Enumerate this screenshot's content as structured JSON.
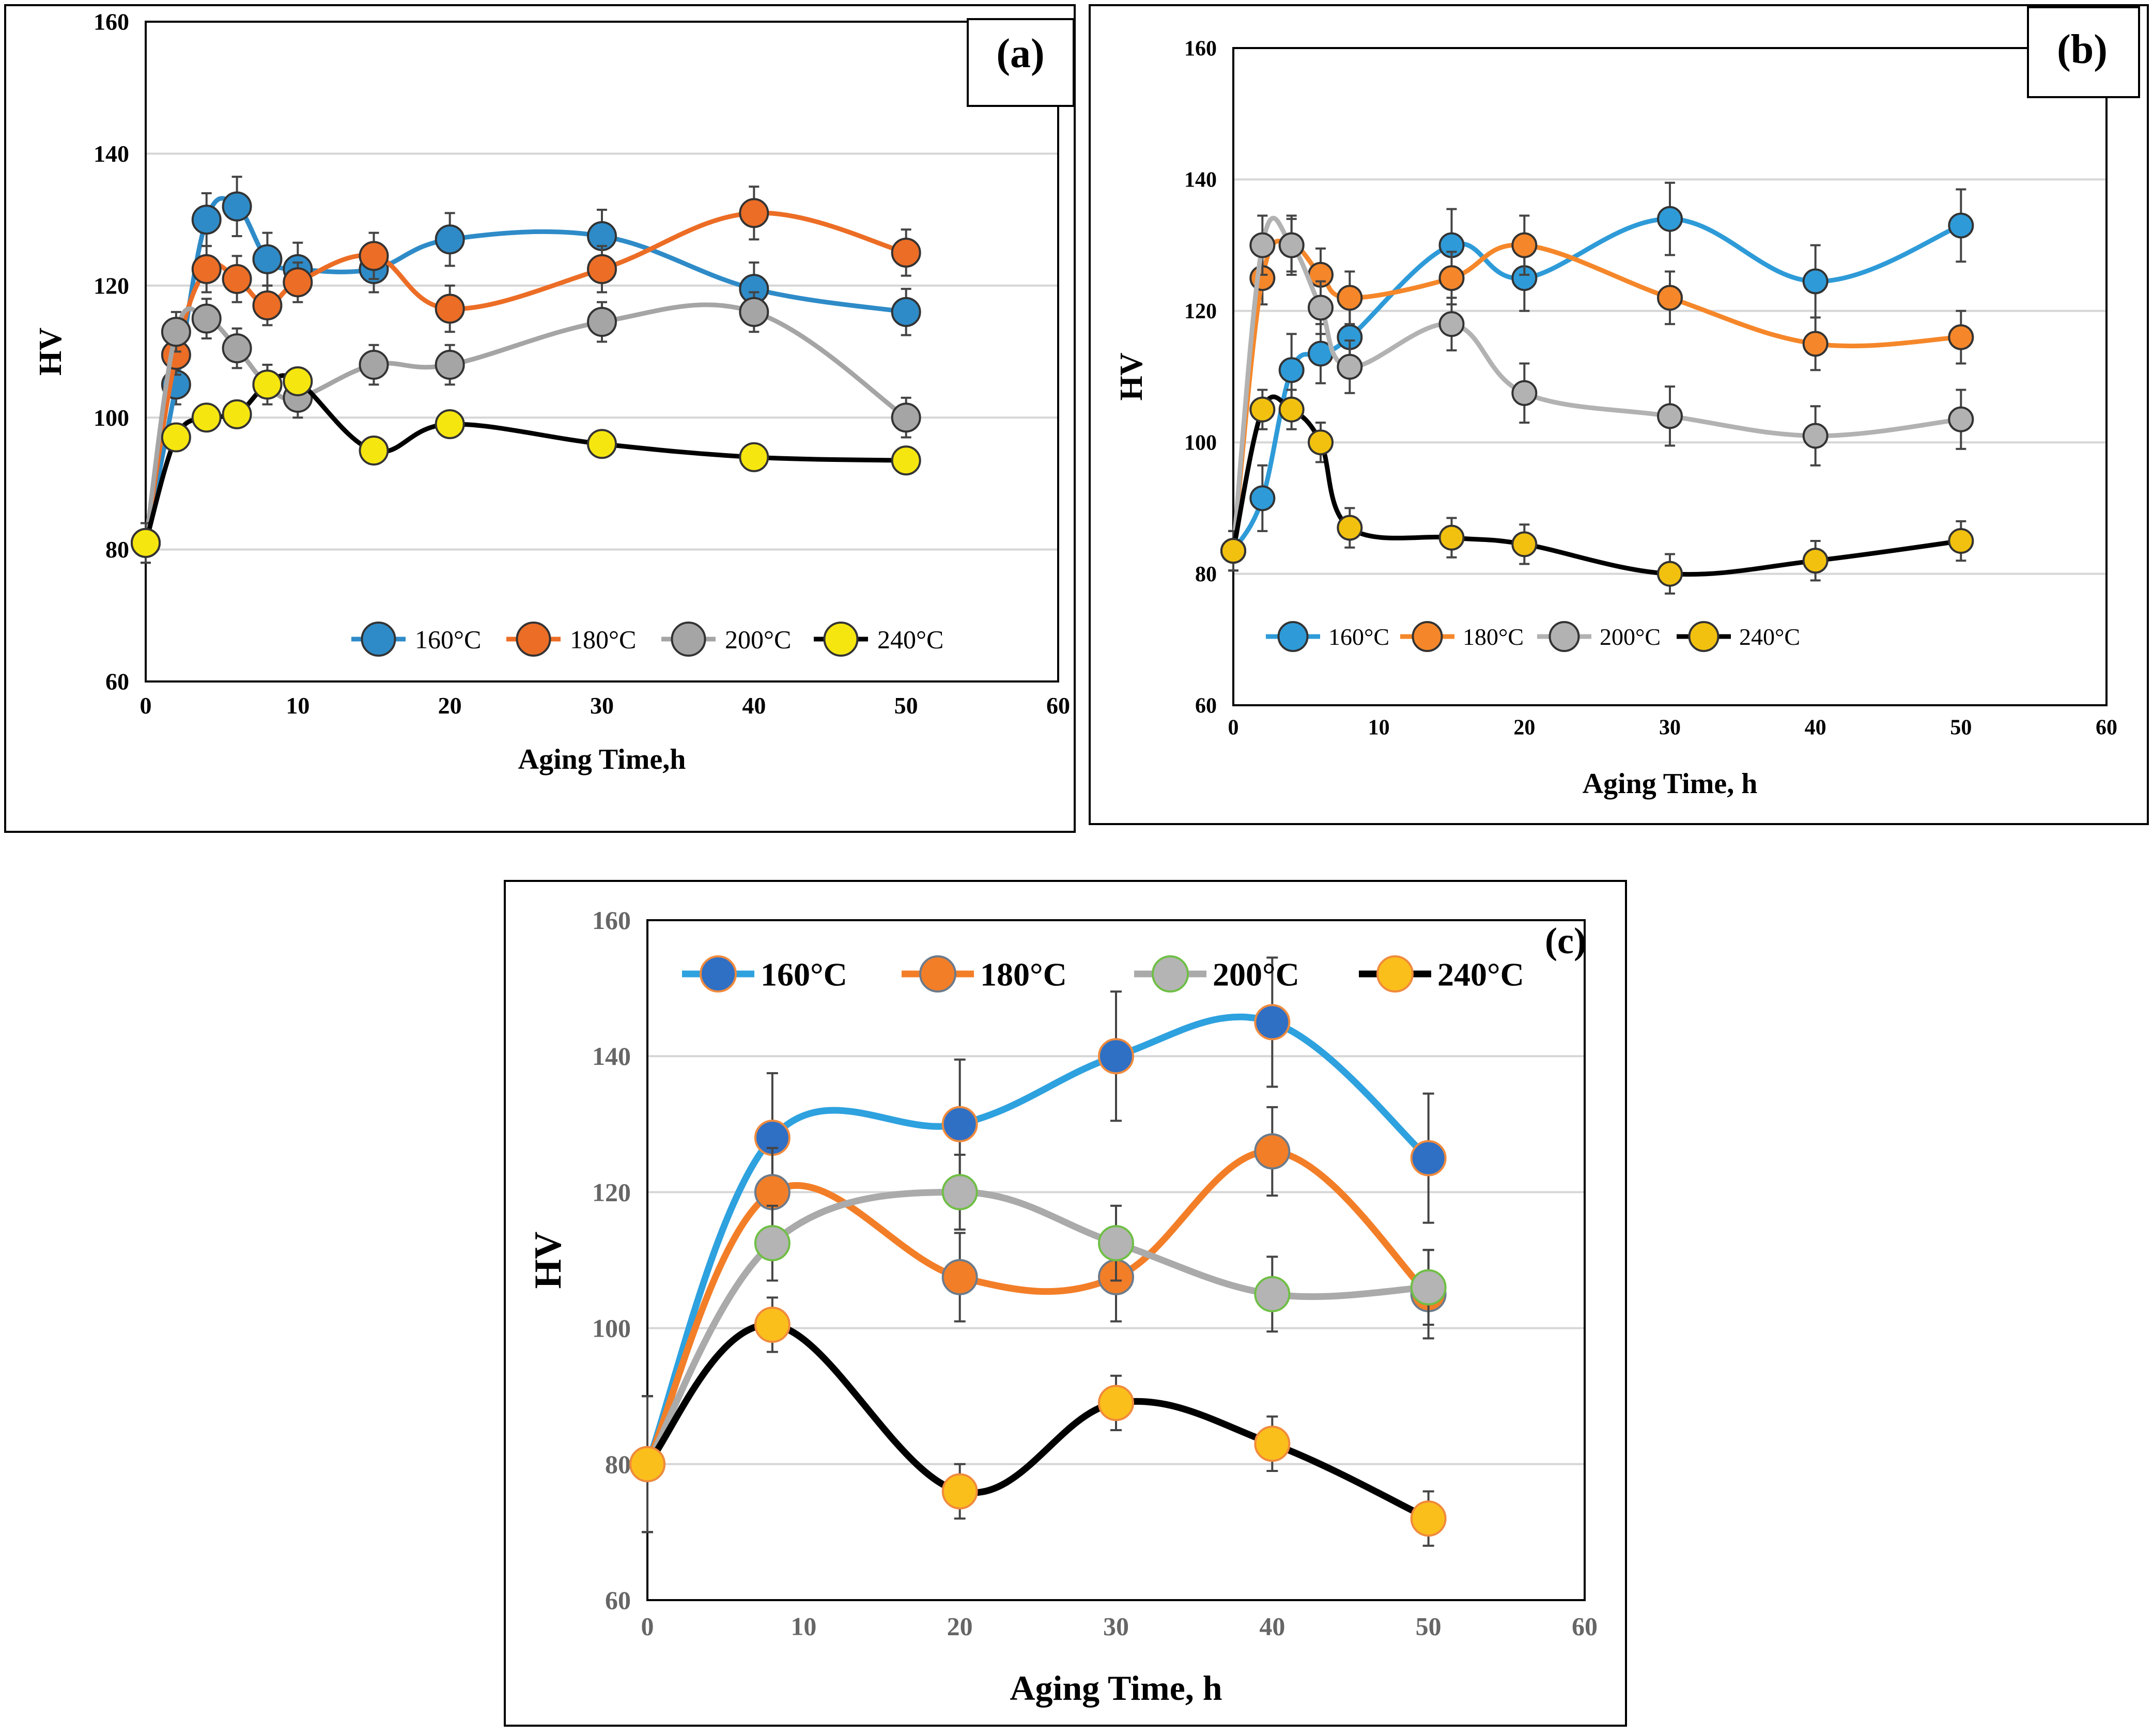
{
  "chart_data": [
    {
      "panel_label": "(a)",
      "type": "line",
      "xlabel": "Aging Time,h",
      "ylabel": "HV",
      "xlim": [
        0,
        60
      ],
      "ylim": [
        60,
        160
      ],
      "xticks": [
        "0",
        "10",
        "20",
        "30",
        "40",
        "50",
        "60"
      ],
      "yticks": [
        "60",
        "80",
        "100",
        "120",
        "140",
        "160"
      ],
      "legend_position": "bottom-center",
      "series": [
        {
          "name": "160°C",
          "color": "#2e8bc8",
          "x": [
            0,
            2,
            4,
            6,
            8,
            10,
            15,
            20,
            30,
            40,
            50
          ],
          "y": [
            81,
            105,
            130,
            132,
            124,
            122.5,
            122.5,
            127,
            127.5,
            119.5,
            116
          ],
          "err": [
            3,
            3,
            4,
            4.5,
            4,
            4,
            3.5,
            4,
            4,
            4,
            3.5
          ]
        },
        {
          "name": "180°C",
          "color": "#ec6d25",
          "x": [
            0,
            2,
            4,
            6,
            8,
            10,
            15,
            20,
            30,
            40,
            50
          ],
          "y": [
            81,
            109.5,
            122.5,
            121,
            117,
            120.5,
            124.5,
            116.5,
            122.5,
            131,
            125
          ],
          "err": [
            3,
            3,
            3.5,
            3.5,
            3,
            3,
            3.5,
            3.5,
            3.5,
            4,
            3.5
          ]
        },
        {
          "name": "200°C",
          "color": "#a5a5a5",
          "x": [
            0,
            2,
            4,
            6,
            8,
            10,
            15,
            20,
            30,
            40,
            50
          ],
          "y": [
            81,
            113,
            115,
            110.5,
            105,
            103,
            108,
            108,
            114.5,
            116,
            100
          ],
          "err": [
            3,
            3,
            3,
            3,
            3,
            3,
            3,
            3,
            3,
            3,
            3
          ]
        },
        {
          "name": "240°C",
          "color": "#000000",
          "marker_color": "#f6e60f",
          "x": [
            0,
            2,
            4,
            6,
            8,
            10,
            15,
            20,
            30,
            40,
            50
          ],
          "y": [
            81,
            97,
            100,
            100.5,
            105,
            105.5,
            95,
            99,
            96,
            94,
            93.5
          ],
          "err": [
            3,
            2,
            2,
            2,
            2,
            2,
            2,
            2,
            2,
            2,
            2
          ]
        }
      ]
    },
    {
      "panel_label": "(b)",
      "type": "line",
      "xlabel": "Aging Time, h",
      "ylabel": "HV",
      "xlim": [
        0,
        60
      ],
      "ylim": [
        60,
        160
      ],
      "xticks": [
        "0",
        "10",
        "20",
        "30",
        "40",
        "50",
        "60"
      ],
      "yticks": [
        "60",
        "80",
        "100",
        "120",
        "140",
        "160"
      ],
      "legend_position": "bottom-center",
      "series": [
        {
          "name": "160°C",
          "color": "#2e9bd8",
          "x": [
            0,
            2,
            4,
            6,
            8,
            15,
            20,
            30,
            40,
            50
          ],
          "y": [
            83.5,
            91.5,
            111,
            113.5,
            116,
            130,
            125,
            134,
            124.5,
            133
          ],
          "err": [
            3,
            5,
            5.5,
            4.5,
            4.5,
            5.5,
            5,
            5.5,
            5.5,
            5.5
          ]
        },
        {
          "name": "180°C",
          "color": "#f5872a",
          "x": [
            0,
            2,
            4,
            6,
            8,
            15,
            20,
            30,
            40,
            50
          ],
          "y": [
            83.5,
            125,
            130,
            125.5,
            122,
            125,
            130,
            122,
            115,
            116
          ],
          "err": [
            3,
            4,
            4,
            4,
            4,
            4,
            4.5,
            4,
            4,
            4
          ]
        },
        {
          "name": "200°C",
          "color": "#b2b2b2",
          "x": [
            0,
            2,
            4,
            6,
            8,
            15,
            20,
            30,
            40,
            50
          ],
          "y": [
            83.5,
            130,
            130,
            120.5,
            111.5,
            118,
            107.5,
            104,
            101,
            103.5
          ],
          "err": [
            3,
            4.5,
            4.5,
            4,
            4,
            4,
            4.5,
            4.5,
            4.5,
            4.5
          ]
        },
        {
          "name": "240°C",
          "color": "#000000",
          "marker_color": "#f2c10f",
          "x": [
            0,
            2,
            4,
            6,
            8,
            15,
            20,
            30,
            40,
            50
          ],
          "y": [
            83.5,
            105,
            105,
            100,
            87,
            85.5,
            84.5,
            80,
            82,
            85
          ],
          "err": [
            3,
            3,
            3,
            3,
            3,
            3,
            3,
            3,
            3,
            3
          ]
        }
      ]
    },
    {
      "panel_label": "(c)",
      "type": "line",
      "xlabel": "Aging Time, h",
      "ylabel": "HV",
      "xlim": [
        0,
        60
      ],
      "ylim": [
        60,
        160
      ],
      "xticks": [
        "0",
        "10",
        "20",
        "30",
        "40",
        "50",
        "60"
      ],
      "yticks": [
        "60",
        "80",
        "100",
        "120",
        "140",
        "160"
      ],
      "legend_position": "top",
      "series": [
        {
          "name": "160°C",
          "color": "#2ea1df",
          "marker_color": "#2f6fc4",
          "marker_edge": "#f08a3c",
          "x": [
            0,
            8,
            20,
            30,
            40,
            50
          ],
          "y": [
            80,
            128,
            130,
            140,
            145,
            125
          ],
          "err": [
            10,
            9.5,
            9.5,
            9.5,
            9.5,
            9.5
          ]
        },
        {
          "name": "180°C",
          "color": "#f37e28",
          "marker_color": "#f37e28",
          "marker_edge": "#6b7b8c",
          "x": [
            0,
            8,
            20,
            30,
            40,
            50
          ],
          "y": [
            80,
            120,
            107.5,
            107.5,
            126,
            105
          ],
          "err": [
            10,
            6.5,
            6.5,
            6.5,
            6.5,
            6.5
          ]
        },
        {
          "name": "200°C",
          "color": "#aaaaaa",
          "marker_color": "#b4b4b4",
          "marker_edge": "#6fbf45",
          "x": [
            0,
            8,
            20,
            30,
            40,
            50
          ],
          "y": [
            80,
            112.5,
            120,
            112.5,
            105,
            106
          ],
          "err": [
            10,
            5.5,
            5.5,
            5.5,
            5.5,
            5.5
          ]
        },
        {
          "name": "240°C",
          "color": "#000000",
          "marker_color": "#fbbf1c",
          "marker_edge": "#f08a3c",
          "x": [
            0,
            8,
            20,
            30,
            40,
            50
          ],
          "y": [
            80,
            100.5,
            76,
            89,
            83,
            72
          ],
          "err": [
            10,
            4,
            4,
            4,
            4,
            4
          ]
        }
      ]
    }
  ]
}
